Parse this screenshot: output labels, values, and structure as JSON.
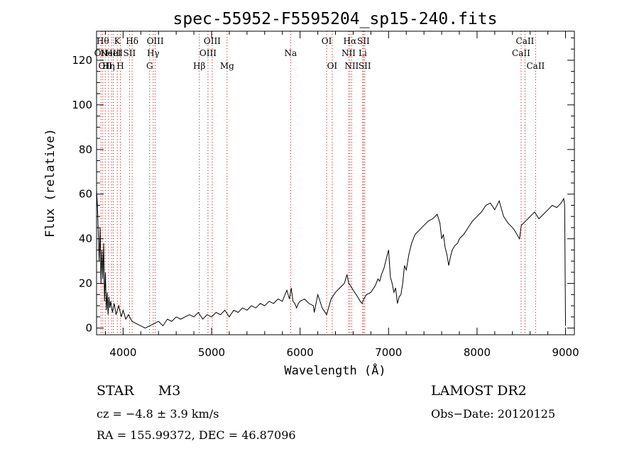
{
  "chart_data": {
    "type": "line",
    "title": "spec-55952-F5595204_sp15-240.fits",
    "xlabel": "Wavelength (Å)",
    "ylabel": "Flux (relative)",
    "xlim": [
      3700,
      9100
    ],
    "ylim": [
      -3,
      133
    ],
    "x_ticks": [
      4000,
      5000,
      6000,
      7000,
      8000,
      9000
    ],
    "y_ticks": [
      0,
      20,
      40,
      60,
      80,
      100,
      120
    ],
    "grid": false,
    "series": [
      {
        "x": [
          3700,
          3710,
          3720,
          3730,
          3740,
          3750,
          3760,
          3770,
          3780,
          3790,
          3800,
          3810,
          3820,
          3830,
          3840,
          3850,
          3860,
          3880,
          3900,
          3920,
          3950,
          3980,
          4000,
          4030,
          4060,
          4100,
          4150,
          4200,
          4250,
          4300,
          4350,
          4400,
          4450,
          4500,
          4550,
          4600,
          4650,
          4700,
          4750,
          4800,
          4850,
          4900,
          4950,
          5000,
          5050,
          5100,
          5150,
          5200,
          5250,
          5300,
          5350,
          5400,
          5450,
          5500,
          5550,
          5600,
          5650,
          5700,
          5750,
          5800,
          5850,
          5880,
          5900,
          5920,
          5940,
          5960,
          5980,
          6000,
          6050,
          6100,
          6150,
          6160,
          6200,
          6250,
          6300,
          6350,
          6400,
          6450,
          6500,
          6530,
          6550,
          6570,
          6600,
          6650,
          6680,
          6700,
          6720,
          6750,
          6800,
          6850,
          6880,
          6900,
          6920,
          6950,
          6980,
          7000,
          7020,
          7040,
          7060,
          7080,
          7100,
          7120,
          7140,
          7160,
          7180,
          7200,
          7230,
          7260,
          7300,
          7350,
          7400,
          7450,
          7500,
          7550,
          7580,
          7600,
          7620,
          7640,
          7660,
          7680,
          7700,
          7720,
          7750,
          7780,
          7800,
          7850,
          7900,
          7950,
          8000,
          8050,
          8100,
          8150,
          8200,
          8250,
          8300,
          8350,
          8400,
          8420,
          8450,
          8480,
          8500,
          8550,
          8600,
          8650,
          8700,
          8750,
          8800,
          8850,
          8900,
          8950,
          8980,
          8990,
          9000
        ],
        "y": [
          62,
          55,
          42,
          30,
          45,
          20,
          35,
          22,
          38,
          12,
          25,
          8,
          16,
          6,
          14,
          9,
          12,
          7,
          11,
          6,
          10,
          5,
          8,
          4,
          6,
          3,
          2,
          1,
          0,
          1,
          2,
          3,
          1,
          4,
          3,
          5,
          4,
          5,
          6,
          5,
          7,
          4,
          6,
          5,
          7,
          6,
          8,
          5,
          8,
          7,
          9,
          8,
          10,
          9,
          11,
          10,
          12,
          11,
          13,
          12,
          17,
          13,
          18,
          12,
          11,
          9,
          11,
          12,
          13,
          11,
          10,
          7,
          15,
          9,
          6,
          13,
          16,
          18,
          20,
          24,
          20,
          19,
          17,
          14,
          12,
          11,
          13,
          15,
          16,
          19,
          22,
          21,
          24,
          27,
          32,
          35,
          23,
          20,
          16,
          18,
          11,
          14,
          15,
          20,
          28,
          26,
          33,
          38,
          42,
          44,
          46,
          48,
          49,
          51,
          47,
          40,
          42,
          36,
          33,
          28,
          32,
          35,
          37,
          38,
          40,
          42,
          45,
          48,
          50,
          52,
          55,
          56,
          53,
          57,
          50,
          47,
          45,
          44,
          42,
          40,
          46,
          48,
          50,
          52,
          49,
          51,
          53,
          55,
          54,
          56,
          58,
          55,
          1
        ]
      }
    ],
    "line_markers": [
      {
        "x": 3750,
        "label": "OII",
        "row": 1
      },
      {
        "x": 3770,
        "label": "Hθ",
        "row": 0
      },
      {
        "x": 3798,
        "label": "OII",
        "row": 2
      },
      {
        "x": 3835,
        "label": "Hη",
        "row": 2
      },
      {
        "x": 3869,
        "label": "NeIII",
        "row": 1
      },
      {
        "x": 3889,
        "label": "HeI",
        "row": 1
      },
      {
        "x": 3934,
        "label": "K",
        "row": 0
      },
      {
        "x": 3969,
        "label": "H",
        "row": 2
      },
      {
        "x": 4072,
        "label": "SII",
        "row": 1
      },
      {
        "x": 4102,
        "label": "Hδ",
        "row": 0
      },
      {
        "x": 4300,
        "label": "G",
        "row": 2
      },
      {
        "x": 4340,
        "label": "Hγ",
        "row": 1
      },
      {
        "x": 4363,
        "label": "OIII",
        "row": 0
      },
      {
        "x": 4861,
        "label": "Hβ",
        "row": 2
      },
      {
        "x": 4959,
        "label": "OIII",
        "row": 1
      },
      {
        "x": 5007,
        "label": "OIII",
        "row": 0
      },
      {
        "x": 5175,
        "label": "Mg",
        "row": 2
      },
      {
        "x": 5893,
        "label": "Na",
        "row": 1
      },
      {
        "x": 6300,
        "label": "OI",
        "row": 0
      },
      {
        "x": 6363,
        "label": "OI",
        "row": 2
      },
      {
        "x": 6548,
        "label": "NII",
        "row": 1
      },
      {
        "x": 6563,
        "label": "Hα",
        "row": 0
      },
      {
        "x": 6583,
        "label": "NII",
        "row": 2
      },
      {
        "x": 6708,
        "label": "Li",
        "row": 1
      },
      {
        "x": 6716,
        "label": "SII",
        "row": 0
      },
      {
        "x": 6731,
        "label": "SII",
        "row": 2
      },
      {
        "x": 8498,
        "label": "CaII",
        "row": 1
      },
      {
        "x": 8542,
        "label": "CaII",
        "row": 0
      },
      {
        "x": 8662,
        "label": "CaII",
        "row": 2
      }
    ]
  },
  "info": {
    "object_class": "STAR",
    "subclass": "M3",
    "survey": "LAMOST DR2",
    "cz": "cz = −4.8 ± 3.9 km/s",
    "obs_date": "Obs−Date: 20120125",
    "coords": "RA = 155.99372, DEC =  46.87096"
  }
}
